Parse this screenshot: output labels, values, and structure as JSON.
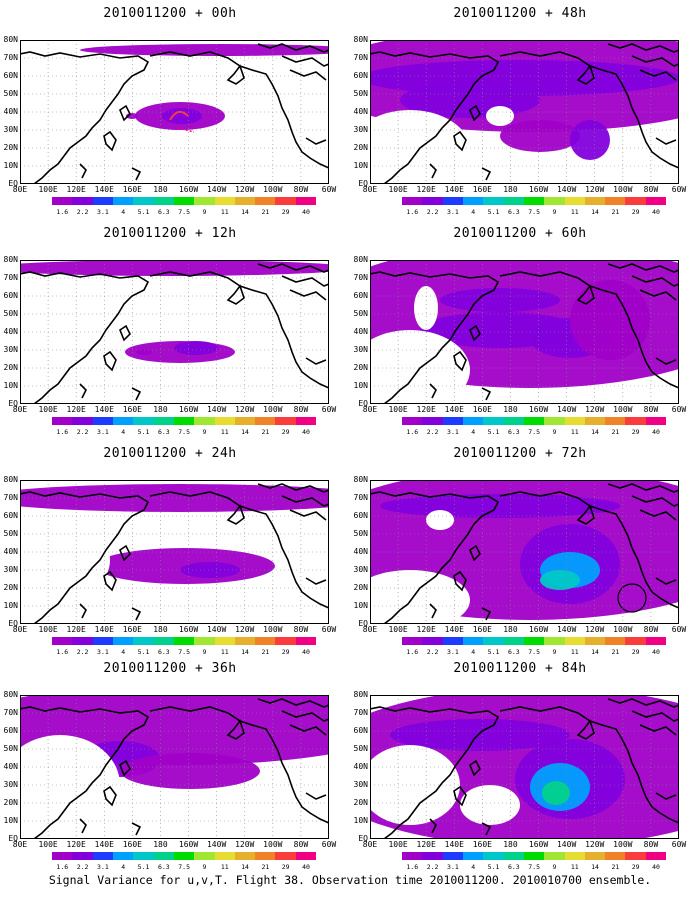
{
  "panels": [
    {
      "title": "2010011200 + 00h"
    },
    {
      "title": "2010011200 + 12h"
    },
    {
      "title": "2010011200 + 24h"
    },
    {
      "title": "2010011200 + 36h"
    },
    {
      "title": "2010011200 + 48h"
    },
    {
      "title": "2010011200 + 60h"
    },
    {
      "title": "2010011200 + 72h"
    },
    {
      "title": "2010011200 + 84h"
    }
  ],
  "lat_labels": [
    "80N",
    "70N",
    "60N",
    "50N",
    "40N",
    "30N",
    "20N",
    "10N",
    "EQ"
  ],
  "lon_labels": [
    "80E",
    "100E",
    "120E",
    "140E",
    "160E",
    "180",
    "160W",
    "140W",
    "120W",
    "100W",
    "80W",
    "60W"
  ],
  "colorbar": {
    "colors": [
      "#a000c8",
      "#8200dc",
      "#1e3cff",
      "#00a0ff",
      "#00c8c8",
      "#00d28c",
      "#00dc00",
      "#a0e632",
      "#e6dc32",
      "#e6af2d",
      "#f08228",
      "#fa3c3c",
      "#f00082"
    ],
    "labels": [
      "1.6",
      "2.2",
      "3.1",
      "4",
      "5.1",
      "6.3",
      "7.5",
      "9",
      "11",
      "14",
      "21",
      "29",
      "40"
    ]
  },
  "caption": "Signal Variance for u,v,T. Flight 38. Observation time 2010011200. 2010010700 ensemble."
}
